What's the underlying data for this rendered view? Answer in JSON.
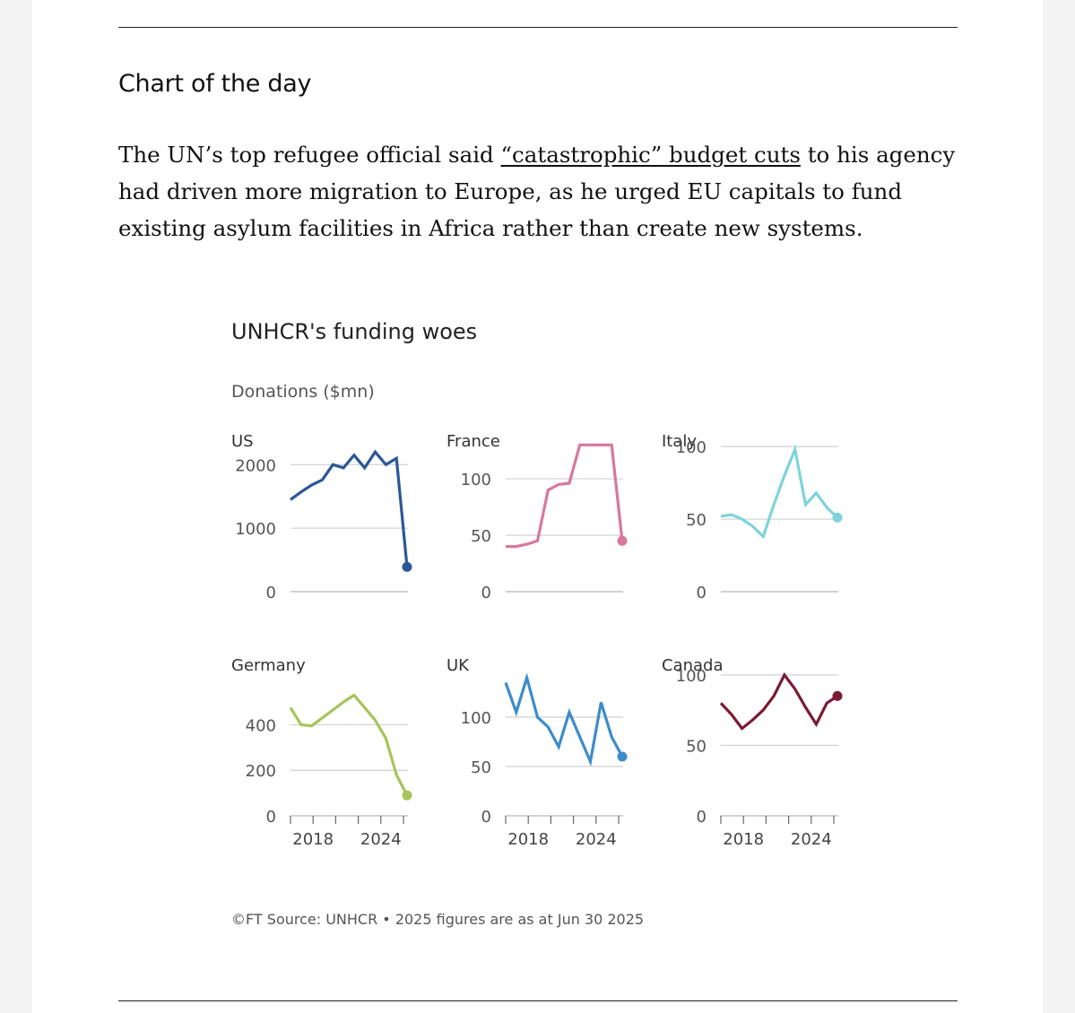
{
  "article": {
    "section_title": "Chart of the day",
    "para_before": "The UN’s top refugee official said ",
    "link_text": "“catastrophic” budget cuts",
    "para_after": " to his agency had driven more migration to Europe, as he urged EU capitals to fund existing asylum facilities in Africa rather than create new systems."
  },
  "chart": {
    "title": "UNHCR's funding woes",
    "subtitle": "Donations ($mn)",
    "footnote": "©FT Source: UNHCR • 2025 figures are as at Jun 30 2025",
    "x_tick_labels": [
      "2018",
      "2024"
    ]
  },
  "chart_data": [
    {
      "type": "line",
      "name": "US",
      "color": "#2b5797",
      "x": [
        2014,
        2015,
        2016,
        2017,
        2018,
        2019,
        2020,
        2021,
        2022,
        2023,
        2024,
        2025
      ],
      "values": [
        1450,
        1570,
        1680,
        1760,
        2000,
        1950,
        2150,
        1950,
        2200,
        2000,
        2100,
        390
      ],
      "y_ticks": [
        0,
        1000,
        2000
      ],
      "ylim": [
        0,
        2400
      ],
      "end_marker": true
    },
    {
      "type": "line",
      "name": "France",
      "color": "#d9779c",
      "x": [
        2014,
        2015,
        2016,
        2017,
        2018,
        2019,
        2020,
        2021,
        2022,
        2023,
        2024,
        2025
      ],
      "values": [
        40,
        40,
        42,
        45,
        90,
        95,
        96,
        130,
        130,
        130,
        130,
        45
      ],
      "y_ticks": [
        0,
        50,
        100
      ],
      "ylim": [
        0,
        135
      ],
      "end_marker": true
    },
    {
      "type": "line",
      "name": "Italy",
      "color": "#7fd3db",
      "x": [
        2014,
        2015,
        2016,
        2017,
        2018,
        2019,
        2020,
        2021,
        2022,
        2023,
        2024,
        2025
      ],
      "values": [
        52,
        53,
        50,
        45,
        38,
        60,
        80,
        98,
        60,
        68,
        58,
        51
      ],
      "y_ticks": [
        0,
        50,
        100
      ],
      "ylim": [
        0,
        105
      ],
      "end_marker": true
    },
    {
      "type": "line",
      "name": "Germany",
      "color": "#a8c45a",
      "x": [
        2014,
        2015,
        2016,
        2017,
        2018,
        2019,
        2020,
        2021,
        2022,
        2023,
        2024,
        2025
      ],
      "values": [
        475,
        400,
        395,
        430,
        465,
        500,
        530,
        475,
        420,
        340,
        180,
        90
      ],
      "y_ticks": [
        0,
        200,
        400
      ],
      "ylim": [
        0,
        650
      ],
      "end_marker": true
    },
    {
      "type": "line",
      "name": "UK",
      "color": "#3c8ccb",
      "x": [
        2014,
        2015,
        2016,
        2017,
        2018,
        2019,
        2020,
        2021,
        2022,
        2023,
        2024,
        2025
      ],
      "values": [
        135,
        105,
        140,
        100,
        90,
        70,
        105,
        80,
        55,
        115,
        80,
        60
      ],
      "y_ticks": [
        0,
        50,
        100
      ],
      "ylim": [
        0,
        150
      ],
      "end_marker": true
    },
    {
      "type": "line",
      "name": "Canada",
      "color": "#7b1a35",
      "x": [
        2014,
        2015,
        2016,
        2017,
        2018,
        2019,
        2020,
        2021,
        2022,
        2023,
        2024,
        2025
      ],
      "values": [
        80,
        72,
        62,
        68,
        75,
        85,
        100,
        90,
        77,
        65,
        80,
        85
      ],
      "y_ticks": [
        0,
        50,
        100
      ],
      "ylim": [
        0,
        105
      ],
      "end_marker": true
    }
  ]
}
